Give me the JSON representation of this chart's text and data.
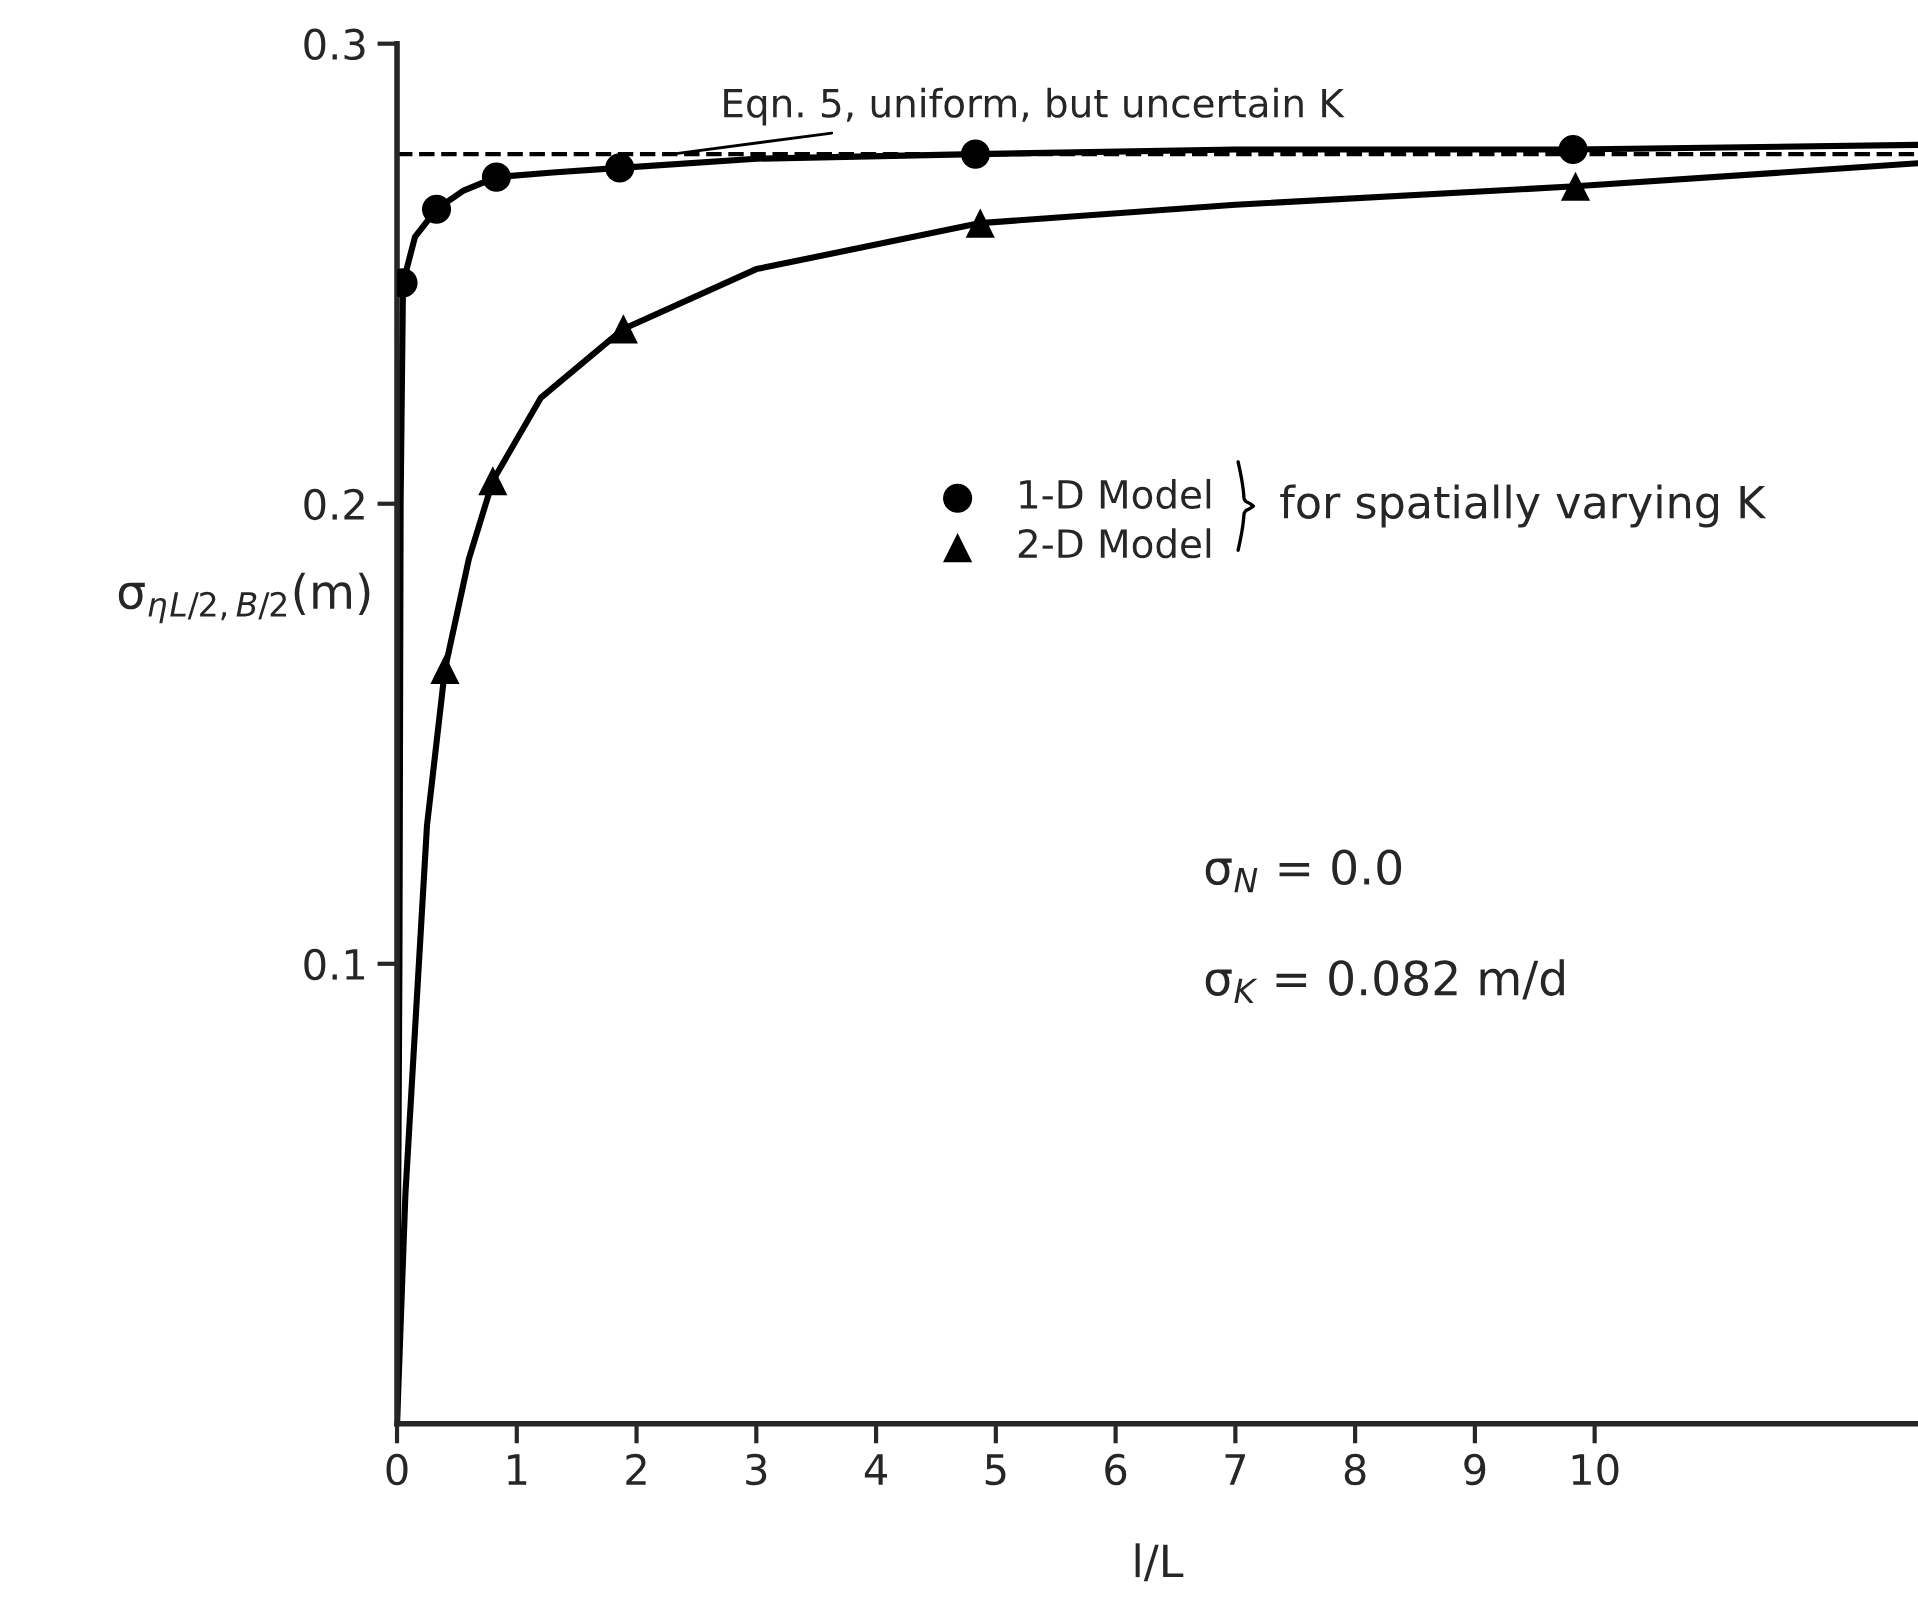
{
  "chart_data": {
    "type": "scatter",
    "xlabel": "l/L",
    "ylabel": "σ$_{η}$$_{L/2,B/2}$(m)",
    "xlim": [
      0,
      12.7
    ],
    "xticks": [
      0,
      1,
      2,
      3,
      4,
      5,
      6,
      7,
      8,
      9,
      10
    ],
    "ylim": [
      0,
      0.3
    ],
    "yticks": [
      0.1,
      0.2,
      0.3
    ],
    "grid": false,
    "legend": "top",
    "series": [
      {
        "type": "line",
        "color": "#000000",
        "marker": "none",
        "x": [
          0,
          0.02,
          0.03,
          0.05,
          0.15,
          0.33,
          0.55,
          0.83,
          1.3,
          1.86,
          3,
          4.83,
          7,
          9.82,
          12.7
        ],
        "values": [
          0,
          0.1,
          0.2,
          0.248,
          0.258,
          0.264,
          0.268,
          0.271,
          0.272,
          0.273,
          0.275,
          0.276,
          0.277,
          0.277,
          0.278
        ]
      },
      {
        "type": "line",
        "color": "#000000",
        "marker": "none",
        "x": [
          0,
          0.07,
          0.25,
          0.4,
          0.6,
          0.8,
          1.2,
          1.89,
          3,
          4.87,
          7,
          9.84,
          12.7
        ],
        "values": [
          0,
          0.05,
          0.13,
          0.164,
          0.188,
          0.205,
          0.223,
          0.238,
          0.251,
          0.261,
          0.265,
          0.269,
          0.274
        ]
      },
      {
        "name": "1-D Model",
        "color": "#000000",
        "marker": "circle",
        "x": [
          0.05,
          0.33,
          0.83,
          1.86,
          4.83,
          9.82
        ],
        "values": [
          0.248,
          0.264,
          0.271,
          0.273,
          0.276,
          0.277
        ]
      },
      {
        "name": "2-D Model",
        "color": "#000000",
        "marker": "triangle",
        "x": [
          0.4,
          0.8,
          1.89,
          4.87,
          9.84
        ],
        "values": [
          0.164,
          0.205,
          0.238,
          0.261,
          0.269
        ]
      }
    ],
    "ref_lines": [
      {
        "axis": "y",
        "value": 0.276,
        "label": "Eqn. 5, uniform, but uncertain K",
        "color": "#000000",
        "line_style": "dashed"
      }
    ],
    "annotations": [
      "for spatially varying K",
      "σ$_{N}$ = 0.0",
      "σ$_{K}$ = 0.082 m/d"
    ]
  }
}
